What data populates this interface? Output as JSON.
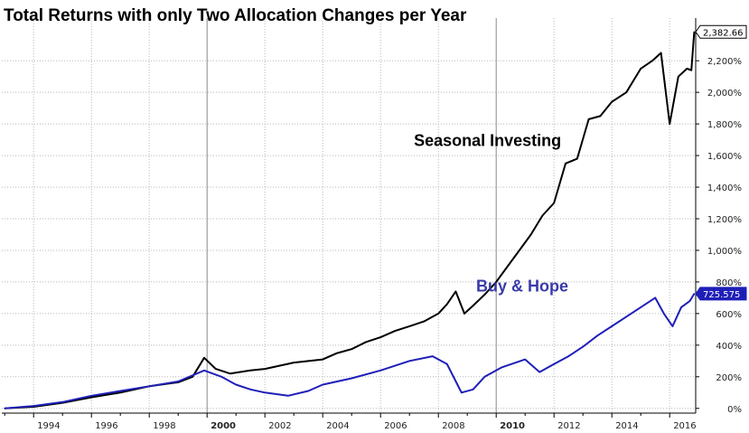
{
  "chart_data": {
    "type": "line",
    "title": "Total Returns with only Two Allocation Changes per Year",
    "xlabel": "",
    "ylabel": "",
    "x_ticks": [
      "1994",
      "1996",
      "1998",
      "2000",
      "2002",
      "2004",
      "2006",
      "2008",
      "2010",
      "2012",
      "2014",
      "2016"
    ],
    "x_ticks_bold": [
      "2000",
      "2010"
    ],
    "y_ticks": [
      "0%",
      "200%",
      "400%",
      "600%",
      "800%",
      "1,000%",
      "1,200%",
      "1,400%",
      "1,600%",
      "1,800%",
      "2,000%",
      "2,200%"
    ],
    "xlim": [
      1992.9,
      2016.9
    ],
    "ylim": [
      -30,
      2470
    ],
    "grid": true,
    "series": [
      {
        "name": "Seasonal Investing",
        "color": "#000000",
        "last_value_label": "2,382.66",
        "points": [
          [
            1993.0,
            0
          ],
          [
            1994.0,
            10
          ],
          [
            1995.0,
            35
          ],
          [
            1996.0,
            70
          ],
          [
            1997.0,
            100
          ],
          [
            1998.0,
            140
          ],
          [
            1999.0,
            165
          ],
          [
            1999.5,
            200
          ],
          [
            1999.9,
            320
          ],
          [
            2000.3,
            250
          ],
          [
            2000.8,
            220
          ],
          [
            2001.5,
            240
          ],
          [
            2002.0,
            250
          ],
          [
            2002.5,
            270
          ],
          [
            2003.0,
            290
          ],
          [
            2004.0,
            310
          ],
          [
            2004.5,
            350
          ],
          [
            2005.0,
            375
          ],
          [
            2005.5,
            420
          ],
          [
            2006.0,
            450
          ],
          [
            2006.5,
            490
          ],
          [
            2007.0,
            520
          ],
          [
            2007.5,
            550
          ],
          [
            2008.0,
            600
          ],
          [
            2008.3,
            660
          ],
          [
            2008.6,
            740
          ],
          [
            2008.9,
            600
          ],
          [
            2009.2,
            650
          ],
          [
            2009.6,
            720
          ],
          [
            2010.0,
            800
          ],
          [
            2010.4,
            900
          ],
          [
            2010.8,
            1000
          ],
          [
            2011.2,
            1100
          ],
          [
            2011.6,
            1220
          ],
          [
            2012.0,
            1300
          ],
          [
            2012.4,
            1550
          ],
          [
            2012.8,
            1580
          ],
          [
            2013.2,
            1830
          ],
          [
            2013.6,
            1850
          ],
          [
            2014.0,
            1940
          ],
          [
            2014.5,
            2000
          ],
          [
            2015.0,
            2150
          ],
          [
            2015.4,
            2200
          ],
          [
            2015.7,
            2250
          ],
          [
            2016.0,
            1800
          ],
          [
            2016.3,
            2100
          ],
          [
            2016.6,
            2150
          ],
          [
            2016.75,
            2140
          ],
          [
            2016.85,
            2382.66
          ]
        ]
      },
      {
        "name": "Buy & Hope",
        "color": "#1f1fb8",
        "last_value_label": "725.575",
        "points": [
          [
            1993.0,
            0
          ],
          [
            1994.0,
            15
          ],
          [
            1995.0,
            40
          ],
          [
            1996.0,
            80
          ],
          [
            1997.0,
            110
          ],
          [
            1998.0,
            140
          ],
          [
            1999.0,
            170
          ],
          [
            1999.9,
            240
          ],
          [
            2000.5,
            200
          ],
          [
            2001.0,
            150
          ],
          [
            2001.5,
            120
          ],
          [
            2002.0,
            100
          ],
          [
            2002.8,
            80
          ],
          [
            2003.5,
            110
          ],
          [
            2004.0,
            150
          ],
          [
            2005.0,
            190
          ],
          [
            2006.0,
            240
          ],
          [
            2007.0,
            300
          ],
          [
            2007.8,
            330
          ],
          [
            2008.3,
            280
          ],
          [
            2008.8,
            100
          ],
          [
            2009.2,
            120
          ],
          [
            2009.6,
            200
          ],
          [
            2010.2,
            260
          ],
          [
            2011.0,
            310
          ],
          [
            2011.5,
            230
          ],
          [
            2012.0,
            280
          ],
          [
            2012.5,
            330
          ],
          [
            2013.0,
            390
          ],
          [
            2013.5,
            460
          ],
          [
            2014.0,
            520
          ],
          [
            2014.5,
            580
          ],
          [
            2015.0,
            640
          ],
          [
            2015.5,
            700
          ],
          [
            2015.8,
            600
          ],
          [
            2016.1,
            520
          ],
          [
            2016.4,
            640
          ],
          [
            2016.7,
            680
          ],
          [
            2016.85,
            725.575
          ]
        ]
      }
    ],
    "annotations": [
      {
        "text": "Seasonal Investing",
        "x": 2009.7,
        "y": 1660,
        "color": "#000000"
      },
      {
        "text": "Buy & Hope",
        "x": 2010.9,
        "y": 740,
        "color": "#3a3aa8"
      }
    ]
  }
}
